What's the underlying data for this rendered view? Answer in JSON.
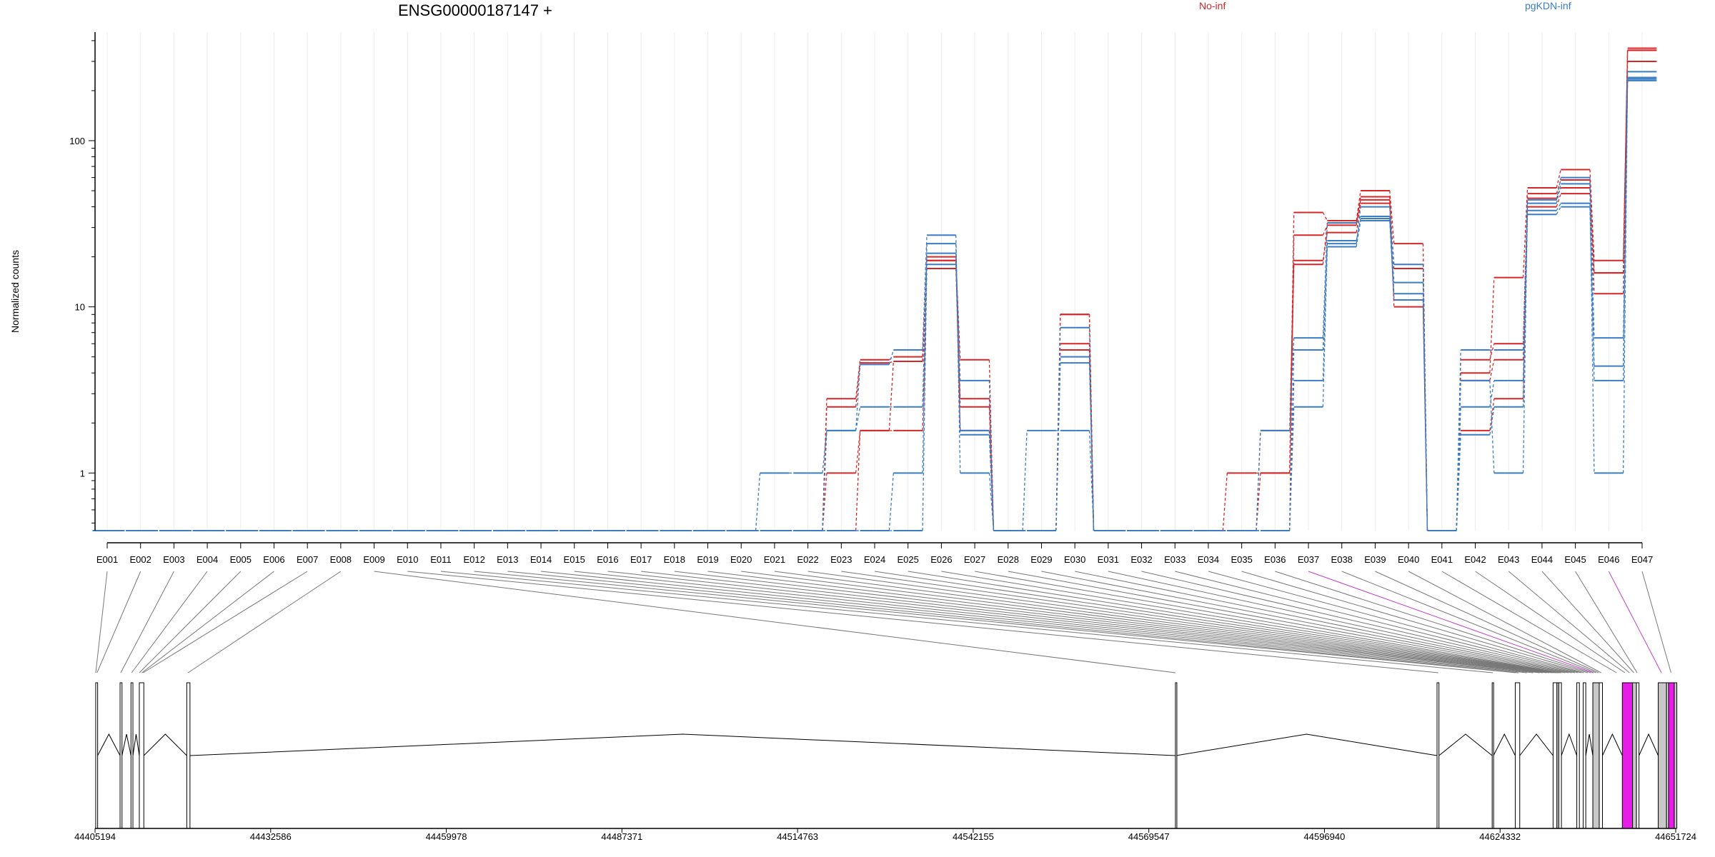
{
  "chart_data": {
    "type": "line",
    "title": "ENSG00000187147 +",
    "ylabel": "Normalized counts",
    "yscale": "log",
    "ylim": [
      0.45,
      450
    ],
    "yticks": [
      1,
      10,
      100
    ],
    "grid": true,
    "legend": [
      {
        "name": "No-inf",
        "color": "#d62728",
        "position": "top"
      },
      {
        "name": "pgKDN-inf",
        "color": "#3a7dc4",
        "position": "top-right"
      }
    ],
    "categories": [
      "E001",
      "E002",
      "E003",
      "E004",
      "E005",
      "E006",
      "E007",
      "E008",
      "E009",
      "E010",
      "E011",
      "E012",
      "E013",
      "E014",
      "E015",
      "E016",
      "E017",
      "E018",
      "E019",
      "E020",
      "E021",
      "E022",
      "E023",
      "E024",
      "E025",
      "E026",
      "E027",
      "E028",
      "E029",
      "E030",
      "E031",
      "E032",
      "E033",
      "E034",
      "E035",
      "E036",
      "E037",
      "E038",
      "E039",
      "E040",
      "E041",
      "E042",
      "E043",
      "E044",
      "E045",
      "E046",
      "E047"
    ],
    "series": [
      {
        "group": "No-inf",
        "color": "#d62728",
        "values": [
          0.45,
          0.45,
          0.45,
          0.45,
          0.45,
          0.45,
          0.45,
          0.45,
          0.45,
          0.45,
          0.45,
          0.45,
          0.45,
          0.45,
          0.45,
          0.45,
          0.45,
          0.45,
          0.45,
          0.45,
          0.45,
          0.45,
          2.8,
          4.8,
          5.0,
          19,
          4.8,
          0.45,
          0.45,
          9.0,
          0.45,
          0.45,
          0.45,
          0.45,
          1.0,
          1.0,
          37,
          33,
          50,
          24,
          0.45,
          4.0,
          15,
          52,
          67,
          19,
          350
        ]
      },
      {
        "group": "No-inf",
        "color": "#d62728",
        "values": [
          0.45,
          0.45,
          0.45,
          0.45,
          0.45,
          0.45,
          0.45,
          0.45,
          0.45,
          0.45,
          0.45,
          0.45,
          0.45,
          0.45,
          0.45,
          0.45,
          0.45,
          0.45,
          0.45,
          0.45,
          0.45,
          0.45,
          1.0,
          1.8,
          1.8,
          17,
          2.8,
          0.45,
          0.45,
          6.0,
          0.45,
          0.45,
          0.45,
          0.45,
          0.45,
          0.45,
          27,
          31,
          46,
          17,
          0.45,
          1.8,
          2.8,
          48,
          58,
          16,
          350
        ]
      },
      {
        "group": "No-inf",
        "color": "#d62728",
        "values": [
          0.45,
          0.45,
          0.45,
          0.45,
          0.45,
          0.45,
          0.45,
          0.45,
          0.45,
          0.45,
          0.45,
          0.45,
          0.45,
          0.45,
          0.45,
          0.45,
          0.45,
          0.45,
          0.45,
          0.45,
          0.45,
          0.45,
          0.45,
          1.8,
          4.7,
          19,
          2.5,
          0.45,
          0.45,
          5.5,
          0.45,
          0.45,
          0.45,
          0.45,
          0.45,
          1.8,
          19,
          28,
          42,
          10,
          0.45,
          4.8,
          6.0,
          45,
          52,
          12,
          300
        ]
      },
      {
        "group": "No-inf",
        "color": "#d62728",
        "values": [
          0.45,
          0.45,
          0.45,
          0.45,
          0.45,
          0.45,
          0.45,
          0.45,
          0.45,
          0.45,
          0.45,
          0.45,
          0.45,
          0.45,
          0.45,
          0.45,
          0.45,
          0.45,
          0.45,
          0.45,
          0.45,
          0.45,
          2.5,
          4.6,
          4.7,
          20,
          1.8,
          0.45,
          0.45,
          9.0,
          0.45,
          0.45,
          0.45,
          0.45,
          0.45,
          1.0,
          18,
          32,
          44,
          11,
          0.45,
          3.6,
          4.8,
          40,
          48,
          16,
          360
        ]
      },
      {
        "group": "pgKDN-inf",
        "color": "#3a7dc4",
        "values": [
          0.45,
          0.45,
          0.45,
          0.45,
          0.45,
          0.45,
          0.45,
          0.45,
          0.45,
          0.45,
          0.45,
          0.45,
          0.45,
          0.45,
          0.45,
          0.45,
          0.45,
          0.45,
          0.45,
          0.45,
          1.0,
          1.0,
          1.8,
          4.5,
          5.5,
          27,
          1.0,
          0.45,
          1.8,
          1.8,
          0.45,
          0.45,
          0.45,
          0.45,
          0.45,
          1.8,
          6.5,
          32,
          35,
          14,
          0.45,
          5.5,
          5.5,
          44,
          60,
          6.5,
          230
        ]
      },
      {
        "group": "pgKDN-inf",
        "color": "#3a7dc4",
        "values": [
          0.45,
          0.45,
          0.45,
          0.45,
          0.45,
          0.45,
          0.45,
          0.45,
          0.45,
          0.45,
          0.45,
          0.45,
          0.45,
          0.45,
          0.45,
          0.45,
          0.45,
          0.45,
          0.45,
          0.45,
          0.45,
          0.45,
          0.45,
          0.45,
          1.0,
          21,
          3.6,
          0.45,
          0.45,
          7.5,
          0.45,
          0.45,
          0.45,
          0.45,
          0.45,
          0.45,
          3.6,
          24,
          40,
          18,
          0.45,
          3.6,
          1.0,
          42,
          55,
          1.0,
          240
        ]
      },
      {
        "group": "pgKDN-inf",
        "color": "#3a7dc4",
        "values": [
          0.45,
          0.45,
          0.45,
          0.45,
          0.45,
          0.45,
          0.45,
          0.45,
          0.45,
          0.45,
          0.45,
          0.45,
          0.45,
          0.45,
          0.45,
          0.45,
          0.45,
          0.45,
          0.45,
          0.45,
          0.45,
          0.45,
          1.8,
          2.5,
          2.5,
          24,
          1.8,
          0.45,
          0.45,
          5.0,
          0.45,
          0.45,
          0.45,
          0.45,
          0.45,
          0.45,
          5.5,
          25,
          34,
          12,
          0.45,
          2.5,
          3.6,
          38,
          42,
          4.4,
          260
        ]
      },
      {
        "group": "pgKDN-inf",
        "color": "#3a7dc4",
        "values": [
          0.45,
          0.45,
          0.45,
          0.45,
          0.45,
          0.45,
          0.45,
          0.45,
          0.45,
          0.45,
          0.45,
          0.45,
          0.45,
          0.45,
          0.45,
          0.45,
          0.45,
          0.45,
          0.45,
          0.45,
          0.45,
          0.45,
          0.45,
          0.45,
          0.45,
          18,
          1.7,
          0.45,
          0.45,
          4.6,
          0.45,
          0.45,
          0.45,
          0.45,
          0.45,
          0.45,
          2.5,
          23,
          33,
          11,
          0.45,
          1.7,
          2.5,
          36,
          40,
          3.6,
          235
        ]
      }
    ],
    "gene_model": {
      "coordinate_ticks": [
        "44405194",
        "44432586",
        "44459978",
        "44487371",
        "44514763",
        "44542155",
        "44569547",
        "44596940",
        "44624332",
        "44651724"
      ],
      "exons": [
        {
          "start": 44405300,
          "end": 44405600,
          "fill": "#ffffff"
        },
        {
          "start": 44409100,
          "end": 44409400,
          "fill": "#ffffff"
        },
        {
          "start": 44410800,
          "end": 44411100,
          "fill": "#ffffff"
        },
        {
          "start": 44412100,
          "end": 44412800,
          "fill": "#ffffff"
        },
        {
          "start": 44419500,
          "end": 44420000,
          "fill": "#ffffff"
        },
        {
          "start": 44573700,
          "end": 44573800,
          "fill": "#ffffff"
        },
        {
          "start": 44614500,
          "end": 44614800,
          "fill": "#ffffff"
        },
        {
          "start": 44623100,
          "end": 44623300,
          "fill": "#ffffff"
        },
        {
          "start": 44626700,
          "end": 44627400,
          "fill": "#ffffff"
        },
        {
          "start": 44632600,
          "end": 44633200,
          "fill": "#ffffff"
        },
        {
          "start": 44633200,
          "end": 44633500,
          "fill": "#c8c8c8"
        },
        {
          "start": 44633500,
          "end": 44633900,
          "fill": "#ffffff"
        },
        {
          "start": 44636300,
          "end": 44636700,
          "fill": "#ffffff"
        },
        {
          "start": 44637300,
          "end": 44637700,
          "fill": "#ffffff"
        },
        {
          "start": 44638800,
          "end": 44639800,
          "fill": "#c8c8c8"
        },
        {
          "start": 44639800,
          "end": 44640300,
          "fill": "#ffffff"
        },
        {
          "start": 44643400,
          "end": 44645000,
          "fill": "#e61de6"
        },
        {
          "start": 44645000,
          "end": 44645600,
          "fill": "#c8c8c8"
        },
        {
          "start": 44645600,
          "end": 44646000,
          "fill": "#ffffff"
        },
        {
          "start": 44649000,
          "end": 44650300,
          "fill": "#c8c8c8"
        },
        {
          "start": 44650300,
          "end": 44650600,
          "fill": "#ffffff"
        },
        {
          "start": 44650600,
          "end": 44651500,
          "fill": "#e61de6"
        },
        {
          "start": 44651500,
          "end": 44651900,
          "fill": "#c8c8c8"
        }
      ]
    }
  }
}
